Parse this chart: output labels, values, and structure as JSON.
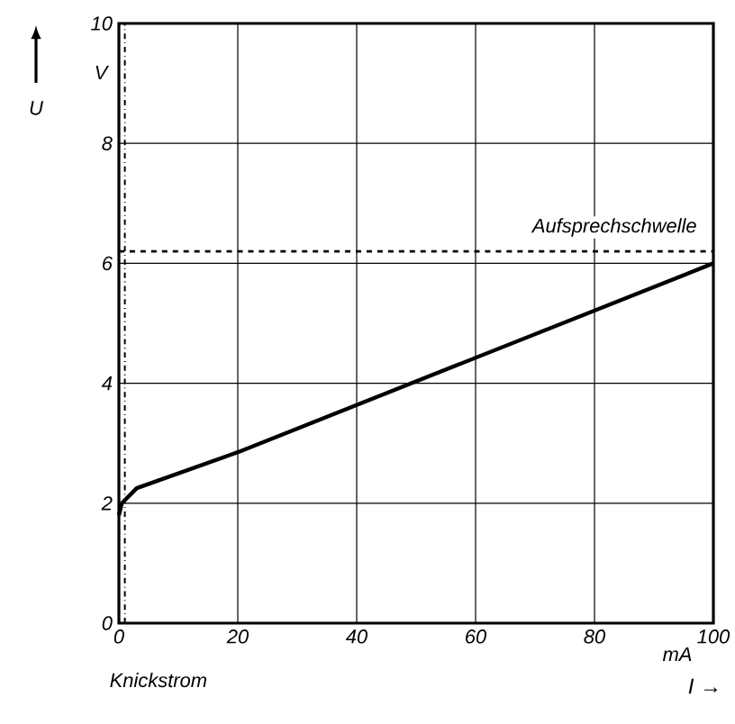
{
  "chart_data": {
    "type": "line",
    "xlabel": "I →",
    "ylabel": "U",
    "x": [
      0,
      0.5,
      1,
      3,
      20,
      100
    ],
    "series": [
      {
        "color": "#000000",
        "values": [
          1.8,
          2.0,
          2.05,
          2.25,
          2.85,
          6.0
        ]
      }
    ],
    "xlim": [
      0,
      100
    ],
    "ylim": [
      0,
      10
    ],
    "xticks": [
      0,
      20,
      40,
      60,
      80,
      100
    ],
    "yticks": [
      0,
      2,
      4,
      6,
      8,
      10
    ],
    "grid": true,
    "marker": "none",
    "line_style": "solid",
    "ref_lines": [
      {
        "axis": "y",
        "value": 6.2,
        "label": "Aufsprechschwelle",
        "color": "#000000",
        "line_style": "dashed"
      },
      {
        "axis": "x",
        "value": 1,
        "label": "Knickstrom",
        "color": "#000000",
        "line_style": "dashdotted"
      }
    ],
    "annotations": [
      "V",
      "mA"
    ]
  }
}
